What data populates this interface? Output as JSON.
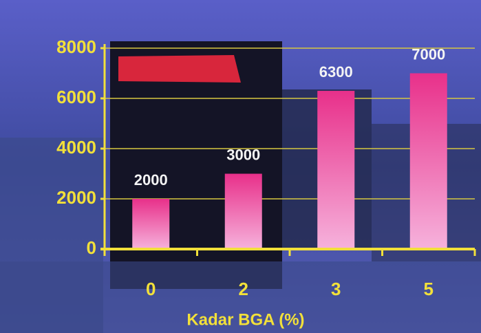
{
  "chart_data": {
    "type": "bar",
    "x_label": "Kadar BGA (%)",
    "categories": [
      "0",
      "2",
      "3",
      "5"
    ],
    "values": [
      2000,
      3000,
      6300,
      7000
    ],
    "color": "#e8308a",
    "ylim": [
      0,
      8000
    ],
    "yticks": [
      0,
      2000,
      4000,
      6000,
      8000
    ],
    "grid": true
  }
}
